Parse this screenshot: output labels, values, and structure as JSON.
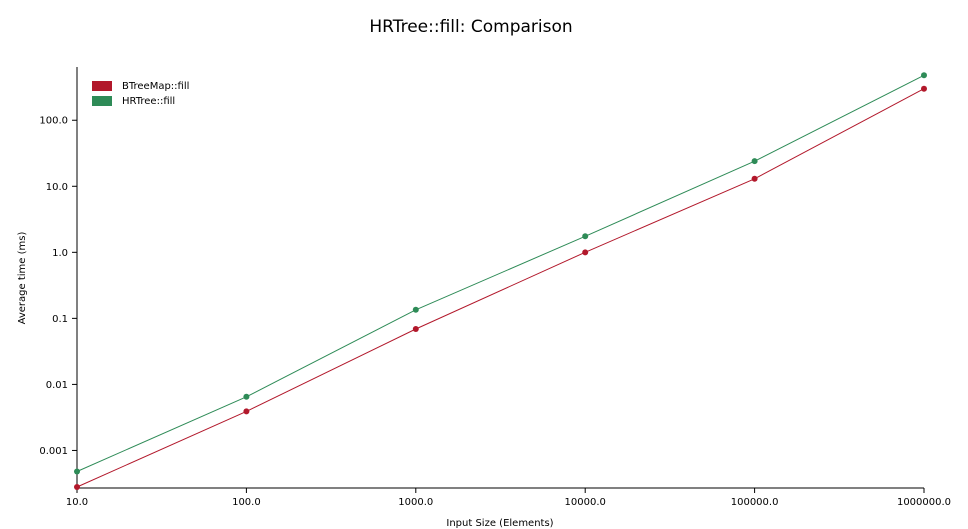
{
  "chart_data": {
    "type": "line",
    "title": "HRTree::fill: Comparison",
    "xlabel": "Input Size (Elements)",
    "ylabel": "Average time (ms)",
    "xscale": "log",
    "yscale": "log",
    "xlim": [
      10,
      1000000
    ],
    "ylim": [
      0.00027,
      640
    ],
    "x": [
      10,
      100,
      1000,
      10000,
      100000,
      1000000
    ],
    "xticks": [
      "10.0",
      "100.0",
      "1000.0",
      "10000.0",
      "100000.0",
      "1000000.0"
    ],
    "yticks": [
      {
        "value": 0.001,
        "label": "0.001"
      },
      {
        "value": 0.01,
        "label": "0.01"
      },
      {
        "value": 0.1,
        "label": "0.1"
      },
      {
        "value": 1,
        "label": "1.0"
      },
      {
        "value": 10,
        "label": "10.0"
      },
      {
        "value": 100,
        "label": "100.0"
      }
    ],
    "grid": false,
    "legend": "top-left",
    "series": [
      {
        "name": "BTreeMap::fill",
        "color": "#b2182b",
        "values": [
          0.00028,
          0.0039,
          0.069,
          1.0,
          13.0,
          300.0
        ]
      },
      {
        "name": "HRTree::fill",
        "color": "#2e8b57",
        "values": [
          0.00048,
          0.0065,
          0.135,
          1.75,
          24.0,
          480.0
        ]
      }
    ]
  }
}
